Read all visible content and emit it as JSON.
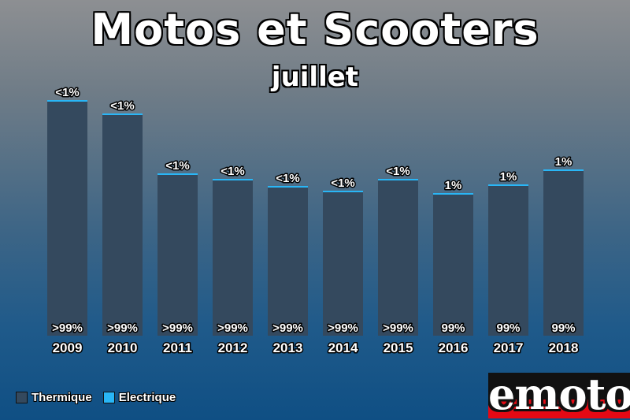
{
  "title": "Motos et Scooters",
  "subtitle": "juillet",
  "colors": {
    "thermique": "#34495e",
    "electrique": "#29b6f6"
  },
  "legend": [
    {
      "label": "Thermique",
      "color": "#34495e"
    },
    {
      "label": "Electrique",
      "color": "#29b6f6"
    }
  ],
  "logo": {
    "text": "emoto"
  },
  "chart_data": {
    "type": "bar",
    "stacked": true,
    "title": "Motos et Scooters",
    "subtitle": "juillet",
    "categories": [
      "2009",
      "2010",
      "2011",
      "2012",
      "2013",
      "2014",
      "2015",
      "2016",
      "2017",
      "2018"
    ],
    "totals": [
      299,
      282,
      206,
      199,
      190,
      184,
      199,
      181,
      192,
      211
    ],
    "series": [
      {
        "name": "Thermique",
        "color": "#34495e",
        "labels": [
          ">99%",
          ">99%",
          ">99%",
          ">99%",
          ">99%",
          ">99%",
          ">99%",
          "99%",
          "99%",
          "99%"
        ]
      },
      {
        "name": "Electrique",
        "color": "#29b6f6",
        "labels": [
          "<1%",
          "<1%",
          "<1%",
          "<1%",
          "<1%",
          "<1%",
          "<1%",
          "1%",
          "1%",
          "1%"
        ]
      }
    ],
    "ylim": [
      0,
      320
    ],
    "grid": false,
    "legend_position": "bottom-left"
  }
}
